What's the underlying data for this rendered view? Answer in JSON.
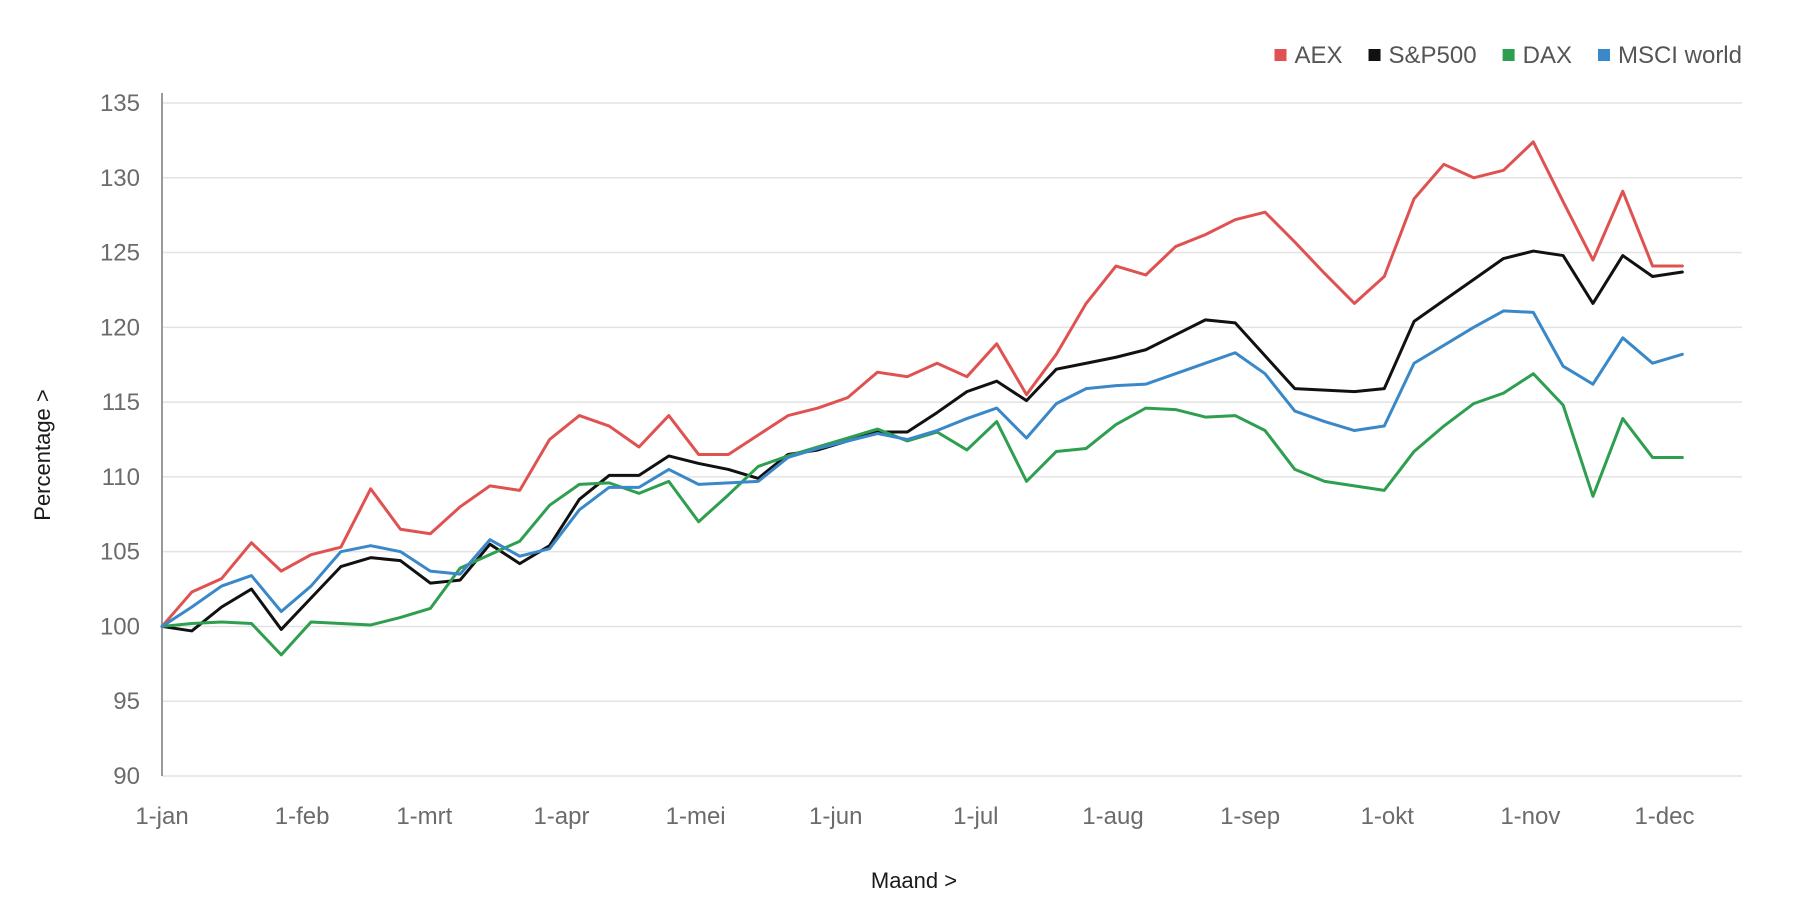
{
  "chart_data": {
    "type": "line",
    "title": "",
    "xlabel": "Maand >",
    "ylabel": "Percentage >",
    "ylim": [
      90,
      135
    ],
    "yticks": [
      "90",
      "95",
      "100",
      "105",
      "110",
      "115",
      "120",
      "125",
      "130",
      "135"
    ],
    "xticks": [
      {
        "label": "1-jan",
        "x": 0
      },
      {
        "label": "1-feb",
        "x": 4.7
      },
      {
        "label": "1-mrt",
        "x": 8.8
      },
      {
        "label": "1-apr",
        "x": 13.4
      },
      {
        "label": "1-mei",
        "x": 17.9
      },
      {
        "label": "1-jun",
        "x": 22.6
      },
      {
        "label": "1-jul",
        "x": 27.3
      },
      {
        "label": "1-aug",
        "x": 31.9
      },
      {
        "label": "1-sep",
        "x": 36.5
      },
      {
        "label": "1-okt",
        "x": 41.1
      },
      {
        "label": "1-nov",
        "x": 45.9
      },
      {
        "label": "1-dec",
        "x": 50.4
      }
    ],
    "grid": true,
    "legend_position": "top-right",
    "x_count": 54,
    "series": [
      {
        "name": "AEX",
        "color": "#e05252",
        "values": [
          100,
          102.3,
          103.2,
          105.6,
          103.7,
          104.8,
          105.3,
          109.2,
          106.5,
          106.2,
          108.0,
          109.4,
          109.1,
          112.5,
          114.1,
          113.4,
          112.0,
          114.1,
          111.5,
          111.5,
          112.8,
          114.1,
          114.6,
          115.3,
          117.0,
          116.7,
          117.6,
          116.7,
          118.9,
          115.5,
          118.2,
          121.6,
          124.1,
          123.5,
          125.4,
          126.2,
          127.2,
          127.7,
          125.7,
          123.6,
          121.6,
          123.4,
          128.6,
          130.9,
          130.0,
          130.5,
          132.4,
          128.4,
          124.5,
          129.1,
          124.1,
          124.1
        ]
      },
      {
        "name": "S&P500",
        "color": "#111111",
        "values": [
          100,
          99.7,
          101.3,
          102.5,
          99.8,
          101.9,
          104.0,
          104.6,
          104.4,
          102.9,
          103.1,
          105.5,
          104.2,
          105.4,
          108.5,
          110.1,
          110.1,
          111.4,
          110.9,
          110.5,
          109.9,
          111.5,
          111.8,
          112.4,
          113.0,
          113.0,
          114.3,
          115.7,
          116.4,
          115.1,
          117.2,
          117.6,
          118.0,
          118.5,
          119.5,
          120.5,
          120.3,
          118.1,
          115.9,
          115.8,
          115.7,
          115.9,
          120.4,
          121.8,
          123.2,
          124.6,
          125.1,
          124.8,
          121.6,
          124.8,
          123.4,
          123.7
        ]
      },
      {
        "name": "DAX",
        "color": "#2e9e4f",
        "values": [
          100,
          100.2,
          100.3,
          100.2,
          98.1,
          100.3,
          100.2,
          100.1,
          100.6,
          101.2,
          103.9,
          104.8,
          105.7,
          108.1,
          109.5,
          109.6,
          108.9,
          109.7,
          107.0,
          108.8,
          110.7,
          111.4,
          112.0,
          112.6,
          113.2,
          112.4,
          113.0,
          111.8,
          113.7,
          109.7,
          111.7,
          111.9,
          113.5,
          114.6,
          114.5,
          114.0,
          114.1,
          113.1,
          110.5,
          109.7,
          109.4,
          109.1,
          111.7,
          113.4,
          114.9,
          115.6,
          116.9,
          114.8,
          108.7,
          113.9,
          111.3,
          111.3
        ]
      },
      {
        "name": "MSCI world",
        "color": "#3a88c8",
        "values": [
          100,
          101.3,
          102.7,
          103.4,
          101.0,
          102.7,
          105.0,
          105.4,
          105.0,
          103.7,
          103.5,
          105.8,
          104.7,
          105.2,
          107.8,
          109.3,
          109.3,
          110.5,
          109.5,
          109.6,
          109.7,
          111.3,
          111.9,
          112.4,
          112.9,
          112.5,
          113.1,
          113.9,
          114.6,
          112.6,
          114.9,
          115.9,
          116.1,
          116.2,
          116.9,
          117.6,
          118.3,
          116.9,
          114.4,
          113.7,
          113.1,
          113.4,
          117.6,
          118.8,
          120.0,
          121.1,
          121.0,
          117.4,
          116.2,
          119.3,
          117.6,
          118.2
        ]
      }
    ]
  }
}
